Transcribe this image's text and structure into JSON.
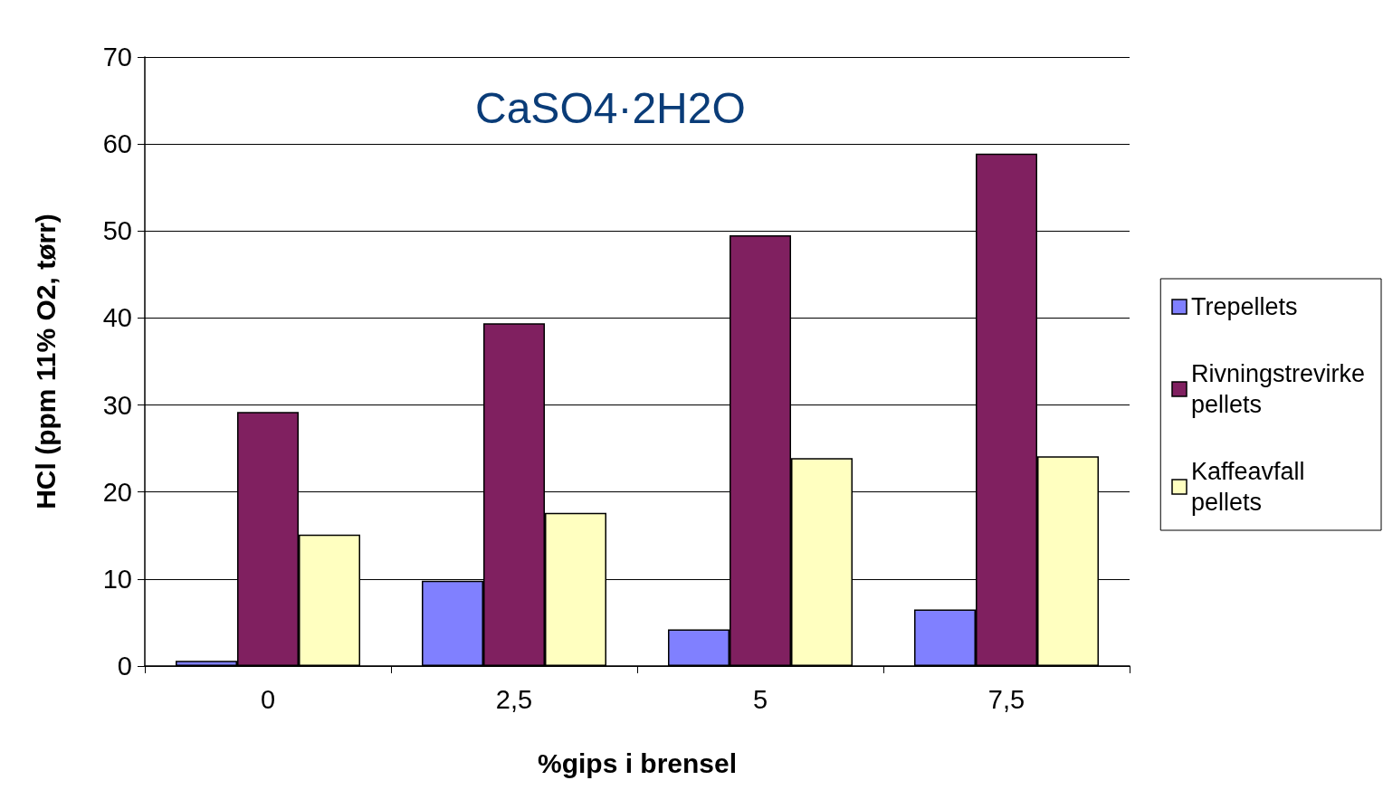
{
  "chart_data": {
    "type": "bar",
    "annotations": [
      "CaSO4·2H2O"
    ],
    "xlabel": "%gips i brensel",
    "ylabel": "HCl (ppm 11% O2, tørr)",
    "categories": [
      "0",
      "2,5",
      "5",
      "7,5"
    ],
    "series": [
      {
        "name": "Trepellets",
        "color": "#8080ff",
        "values": [
          0.6,
          9.8,
          4.2,
          6.5
        ]
      },
      {
        "name": "Rivningstrevirke pellets",
        "color": "#802060",
        "values": [
          29.2,
          39.4,
          49.5,
          58.9
        ]
      },
      {
        "name": "Kaffeavfall pellets",
        "color": "#ffffc0",
        "values": [
          15.1,
          17.6,
          23.9,
          24.1
        ]
      }
    ],
    "ylim": [
      0,
      70
    ],
    "yticks": [
      0,
      10,
      20,
      30,
      40,
      50,
      60,
      70
    ],
    "grid": "y",
    "legend": "right"
  }
}
